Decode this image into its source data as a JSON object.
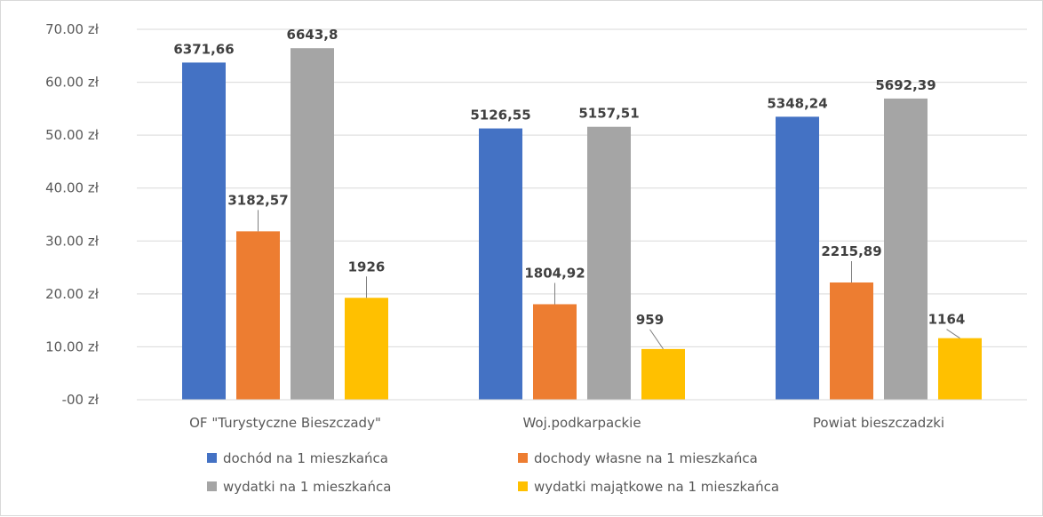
{
  "chart_data": {
    "type": "bar",
    "categories": [
      "OF \"Turystyczne Bieszczady\"",
      "Woj.podkarpackie",
      "Powiat bieszczadzki"
    ],
    "series": [
      {
        "name": "dochód na 1 mieszkańca",
        "color": "#4472C4",
        "values": [
          63.72,
          51.27,
          53.48
        ],
        "labels": [
          "6371,66",
          "5126,55",
          "5348,24"
        ]
      },
      {
        "name": "dochody własne na 1 mieszkańca",
        "color": "#ED7D31",
        "values": [
          31.83,
          18.05,
          22.16
        ],
        "labels": [
          "3182,57",
          "1804,92",
          "2215,89"
        ]
      },
      {
        "name": "wydatki na 1 mieszkańca",
        "color": "#A5A5A5",
        "values": [
          66.44,
          51.58,
          56.92
        ],
        "labels": [
          "6643,8",
          "5157,51",
          "5692,39"
        ]
      },
      {
        "name": "wydatki majątkowe na 1 mieszkańca",
        "color": "#FFC000",
        "values": [
          19.26,
          9.59,
          11.64
        ],
        "labels": [
          "1926",
          "959",
          "1164"
        ]
      }
    ],
    "yticks": [
      "-00 zł",
      "10.00 zł",
      "20.00 zł",
      "30.00 zł",
      "40.00 zł",
      "50.00 zł",
      "60.00 zł",
      "70.00 zł"
    ],
    "ylim": [
      0,
      70
    ],
    "grid": true,
    "legend_position": "bottom"
  }
}
